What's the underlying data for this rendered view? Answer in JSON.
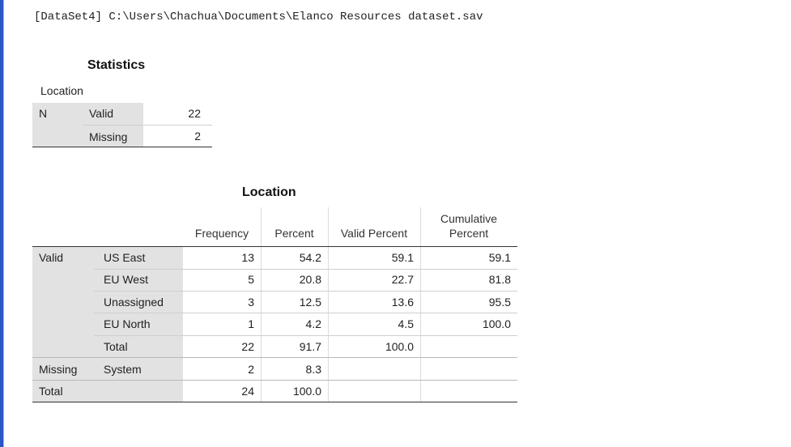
{
  "dataset_path": "[DataSet4] C:\\Users\\Chachua\\Documents\\Elanco Resources dataset.sav",
  "statistics": {
    "title": "Statistics",
    "variable_label": "Location",
    "group_label": "N",
    "rows": [
      {
        "label": "Valid",
        "value": "22"
      },
      {
        "label": "Missing",
        "value": "2"
      }
    ]
  },
  "frequency_table": {
    "title": "Location",
    "headers": {
      "frequency": "Frequency",
      "percent": "Percent",
      "valid_percent": "Valid Percent",
      "cumulative_line1": "Cumulative",
      "cumulative_line2": "Percent"
    },
    "group_labels": {
      "valid": "Valid",
      "missing": "Missing",
      "total": "Total"
    },
    "valid_rows": [
      {
        "label": "US East",
        "frequency": "13",
        "percent": "54.2",
        "valid_percent": "59.1",
        "cumulative": "59.1"
      },
      {
        "label": "EU West",
        "frequency": "5",
        "percent": "20.8",
        "valid_percent": "22.7",
        "cumulative": "81.8"
      },
      {
        "label": "Unassigned",
        "frequency": "3",
        "percent": "12.5",
        "valid_percent": "13.6",
        "cumulative": "95.5"
      },
      {
        "label": "EU North",
        "frequency": "1",
        "percent": "4.2",
        "valid_percent": "4.5",
        "cumulative": "100.0"
      },
      {
        "label": "Total",
        "frequency": "22",
        "percent": "91.7",
        "valid_percent": "100.0",
        "cumulative": ""
      }
    ],
    "missing_row": {
      "label": "System",
      "frequency": "2",
      "percent": "8.3"
    },
    "total_row": {
      "frequency": "24",
      "percent": "100.0"
    }
  }
}
